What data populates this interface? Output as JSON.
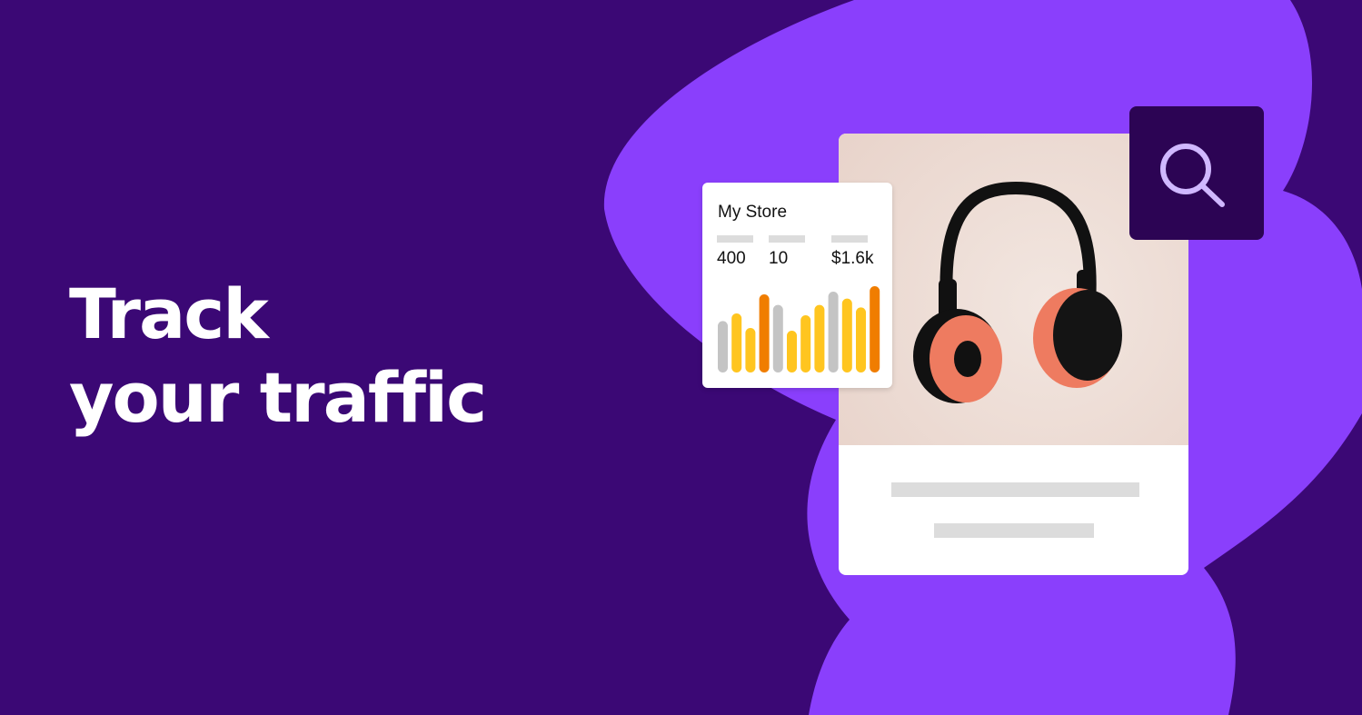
{
  "headline": {
    "line1": "Track",
    "line2": "your traffic"
  },
  "colors": {
    "background": "#3b0875",
    "blob": "#8a3ffc",
    "search_box": "#2c0454",
    "search_icon": "#d0b8ff",
    "bar_gray": "#c4c4c4",
    "bar_yellow": "#ffc51f",
    "bar_orange": "#f07d00"
  },
  "store_card": {
    "title": "My Store",
    "stats": [
      {
        "value": "400"
      },
      {
        "value": "10"
      },
      {
        "value": "$1.6k"
      }
    ]
  },
  "chart_data": {
    "type": "bar",
    "values": [
      170,
      195,
      147,
      258,
      223,
      138,
      189,
      223,
      267,
      244,
      215,
      285
    ],
    "colors": [
      "gray",
      "yellow",
      "yellow",
      "orange",
      "gray",
      "yellow",
      "yellow",
      "yellow",
      "gray",
      "yellow",
      "yellow",
      "orange"
    ],
    "ylim": [
      0,
      300
    ]
  },
  "icons": {
    "search": "search-icon",
    "product": "headphones-icon"
  }
}
